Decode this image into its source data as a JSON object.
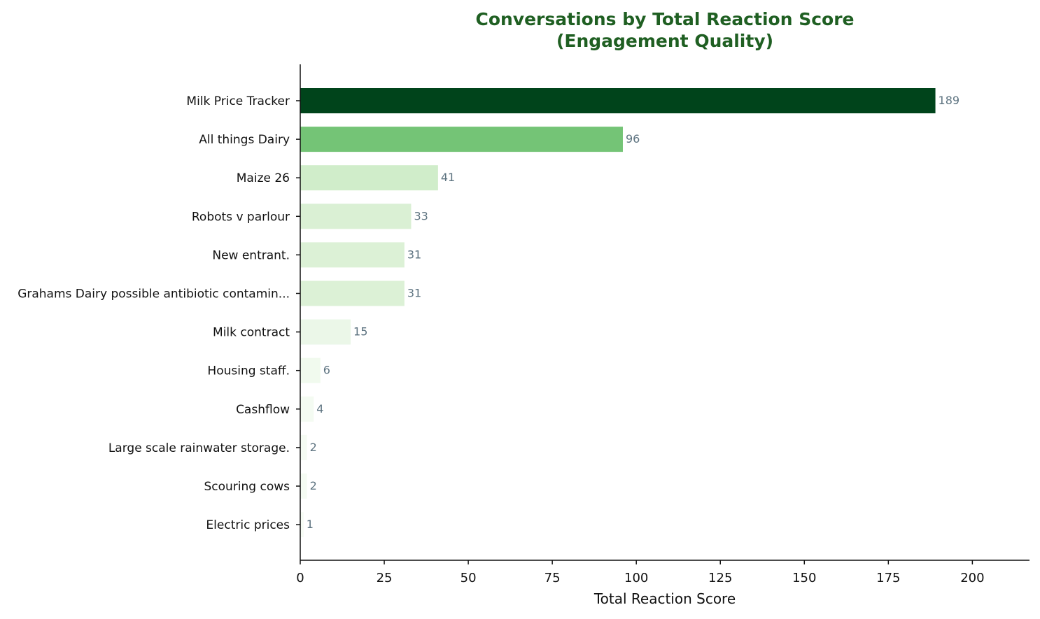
{
  "chart_data": {
    "type": "bar",
    "orientation": "horizontal",
    "title": "Conversations by Total Reaction Score\n(Engagement Quality)",
    "title_color": "#1f5f22",
    "xlabel": "Total Reaction Score",
    "ylabel": "",
    "xlim": [
      0,
      217
    ],
    "xticks": [
      0,
      25,
      50,
      75,
      100,
      125,
      150,
      175,
      200
    ],
    "grid": false,
    "categories": [
      "Milk Price Tracker",
      "All things Dairy",
      "Maize 26",
      "Robots v parlour",
      "New entrant.",
      "Grahams Dairy possible antibiotic contamin...",
      "Milk contract",
      "Housing staff.",
      "Cashflow",
      "Large scale rainwater storage.",
      "Scouring cows",
      "Electric prices"
    ],
    "values": [
      189,
      96,
      41,
      33,
      31,
      31,
      15,
      6,
      4,
      2,
      2,
      1
    ],
    "bar_colors": [
      "#00441b",
      "#74c476",
      "#d0edca",
      "#daf0d4",
      "#dcf1d6",
      "#dcf1d6",
      "#ebf7e8",
      "#f1faee",
      "#f4fbf2",
      "#f5fbf3",
      "#f5fbf3",
      "#f7fcf5"
    ],
    "value_label_color": "#5d7380"
  }
}
